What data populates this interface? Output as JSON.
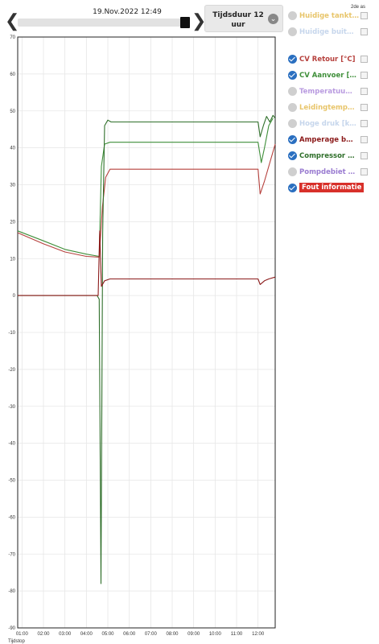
{
  "header": {
    "datetime": "19.Nov.2022 12:49",
    "prev_symbol": "❮",
    "next_symbol": "❯",
    "duration_label": "Tijdsduur 12 uur",
    "dropdown_symbol": "⌄",
    "second_axis_label": "2de as"
  },
  "legend": {
    "items": [
      {
        "label": "Huidige tankt…",
        "checked": false,
        "color": "#e8c56a"
      },
      {
        "label": "Huidige buit…",
        "checked": false,
        "color": "#c6d6ec"
      },
      {
        "label": "CV Retour [°C]",
        "checked": true,
        "color": "#b6413d"
      },
      {
        "label": "CV Aanvoer […",
        "checked": true,
        "color": "#3f8f3a"
      },
      {
        "label": "Temperatuu…",
        "checked": false,
        "color": "#b99be0"
      },
      {
        "label": "Leidingtemp…",
        "checked": false,
        "color": "#e8c56a"
      },
      {
        "label": "Hoge druk [k…",
        "checked": false,
        "color": "#c6d6ec"
      },
      {
        "label": "Amperage b…",
        "checked": true,
        "color": "#8b1a1a"
      },
      {
        "label": "Compressor …",
        "checked": true,
        "color": "#2f6f2a"
      },
      {
        "label": "Pompdebiet …",
        "checked": false,
        "color": "#9a7cd1"
      },
      {
        "label": "Fout informatie",
        "checked": true,
        "color": "#d8302a"
      }
    ]
  },
  "chart_data": {
    "type": "line",
    "xlabel": "Tijdstop",
    "ylim": [
      -90,
      70
    ],
    "yticks": [
      "70",
      "60",
      "50",
      "40",
      "30",
      "20",
      "10",
      "0",
      "-10",
      "-20",
      "-30",
      "-40",
      "-50",
      "-60",
      "-70",
      "-80",
      "-90"
    ],
    "xticks": [
      "01:00",
      "02:00",
      "03:00",
      "04:00",
      "05:00",
      "06:00",
      "07:00",
      "08:00",
      "09:00",
      "10:00",
      "11:00",
      "12:00"
    ],
    "xlim": [
      0.8,
      12.8
    ],
    "grid": true,
    "series": [
      {
        "name": "CV Aanvoer […",
        "color": "#3f8f3a",
        "points": [
          [
            0.8,
            17.5
          ],
          [
            2,
            14.8
          ],
          [
            3,
            12.5
          ],
          [
            4,
            11.2
          ],
          [
            4.6,
            10.6
          ],
          [
            4.7,
            35
          ],
          [
            4.85,
            41
          ],
          [
            5.1,
            41.5
          ],
          [
            12,
            41.5
          ],
          [
            12.15,
            36
          ],
          [
            12.3,
            40
          ],
          [
            12.5,
            46
          ],
          [
            12.7,
            48
          ]
        ]
      },
      {
        "name": "CV Retour [°C]",
        "color": "#b6413d",
        "points": [
          [
            0.8,
            17
          ],
          [
            2,
            14
          ],
          [
            3,
            11.8
          ],
          [
            4,
            10.6
          ],
          [
            4.6,
            10.4
          ],
          [
            4.75,
            24
          ],
          [
            4.9,
            32
          ],
          [
            5.1,
            34.2
          ],
          [
            12,
            34.2
          ],
          [
            12.1,
            27.5
          ],
          [
            12.3,
            31
          ],
          [
            12.5,
            35
          ],
          [
            12.8,
            41
          ]
        ]
      },
      {
        "name": "Compressor …",
        "color": "#2f6f2a",
        "points": [
          [
            0.8,
            0
          ],
          [
            4.5,
            0
          ],
          [
            4.6,
            -1
          ],
          [
            4.68,
            -78
          ],
          [
            4.76,
            17
          ],
          [
            4.85,
            46
          ],
          [
            5.0,
            47.5
          ],
          [
            5.15,
            47
          ],
          [
            12,
            47
          ],
          [
            12.1,
            43
          ],
          [
            12.25,
            46
          ],
          [
            12.4,
            48.5
          ],
          [
            12.55,
            47
          ],
          [
            12.7,
            48.8
          ],
          [
            12.8,
            48
          ]
        ]
      },
      {
        "name": "Amperage b…",
        "color": "#8b1a1a",
        "points": [
          [
            0.8,
            0
          ],
          [
            4.55,
            0
          ],
          [
            4.62,
            17.5
          ],
          [
            4.7,
            2.5
          ],
          [
            4.85,
            4
          ],
          [
            5.1,
            4.5
          ],
          [
            12,
            4.5
          ],
          [
            12.1,
            3
          ],
          [
            12.3,
            4
          ],
          [
            12.5,
            4.5
          ],
          [
            12.8,
            5
          ]
        ]
      }
    ]
  }
}
